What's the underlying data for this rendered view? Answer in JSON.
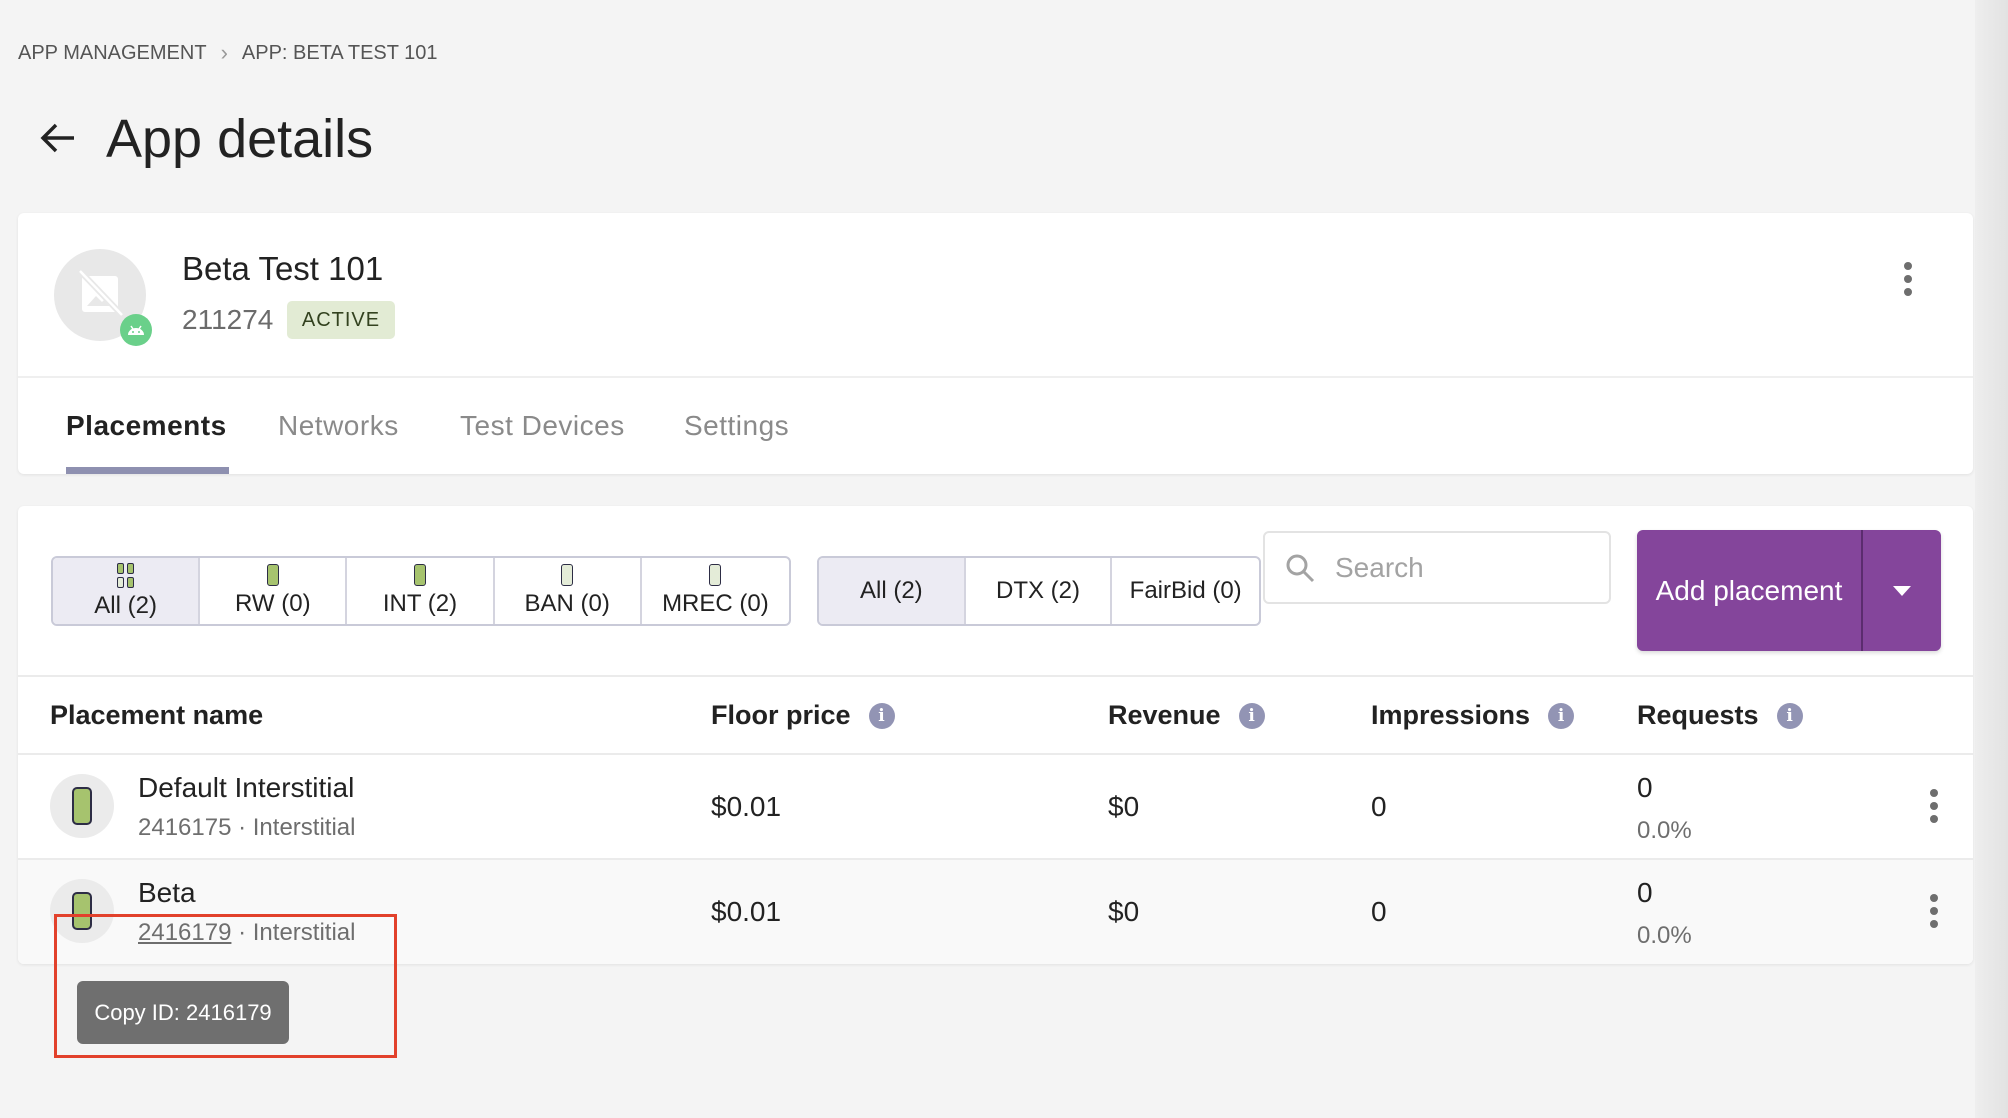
{
  "breadcrumb": [
    "APP MANAGEMENT",
    "APP: BETA TEST 101"
  ],
  "page_title": "App details",
  "app": {
    "name": "Beta Test 101",
    "id": "211274",
    "status": "ACTIVE",
    "platform_icon": "android-icon"
  },
  "tabs": [
    {
      "label": "Placements",
      "active": true
    },
    {
      "label": "Networks",
      "active": false
    },
    {
      "label": "Test Devices",
      "active": false
    },
    {
      "label": "Settings",
      "active": false
    }
  ],
  "ad_type_filter": [
    {
      "label": "All (2)",
      "selected": true
    },
    {
      "label": "RW (0)",
      "selected": false
    },
    {
      "label": "INT (2)",
      "selected": false
    },
    {
      "label": "BAN (0)",
      "selected": false
    },
    {
      "label": "MREC (0)",
      "selected": false
    }
  ],
  "mediation_filter": [
    {
      "label": "All (2)",
      "selected": true
    },
    {
      "label": "DTX (2)",
      "selected": false
    },
    {
      "label": "FairBid (0)",
      "selected": false
    }
  ],
  "search": {
    "placeholder": "Search",
    "value": ""
  },
  "add_button": {
    "label": "Add placement"
  },
  "columns": [
    "Placement name",
    "Floor price",
    "Revenue",
    "Impressions",
    "Requests"
  ],
  "rows": [
    {
      "name": "Default Interstitial",
      "id": "2416175",
      "type": "Interstitial",
      "floor_price": "$0.01",
      "revenue": "$0",
      "impressions": "0",
      "requests": "0",
      "fill_rate": "0.0%"
    },
    {
      "name": "Beta",
      "id": "2416179",
      "type": "Interstitial",
      "floor_price": "$0.01",
      "revenue": "$0",
      "impressions": "0",
      "requests": "0",
      "fill_rate": "0.0%"
    }
  ],
  "tooltip": "Copy ID: 2416179",
  "colors": {
    "primary": "#84459b",
    "active_badge_bg": "#e2ebd4",
    "highlight": "#e2412b",
    "tab_underline": "#8e90b0"
  }
}
